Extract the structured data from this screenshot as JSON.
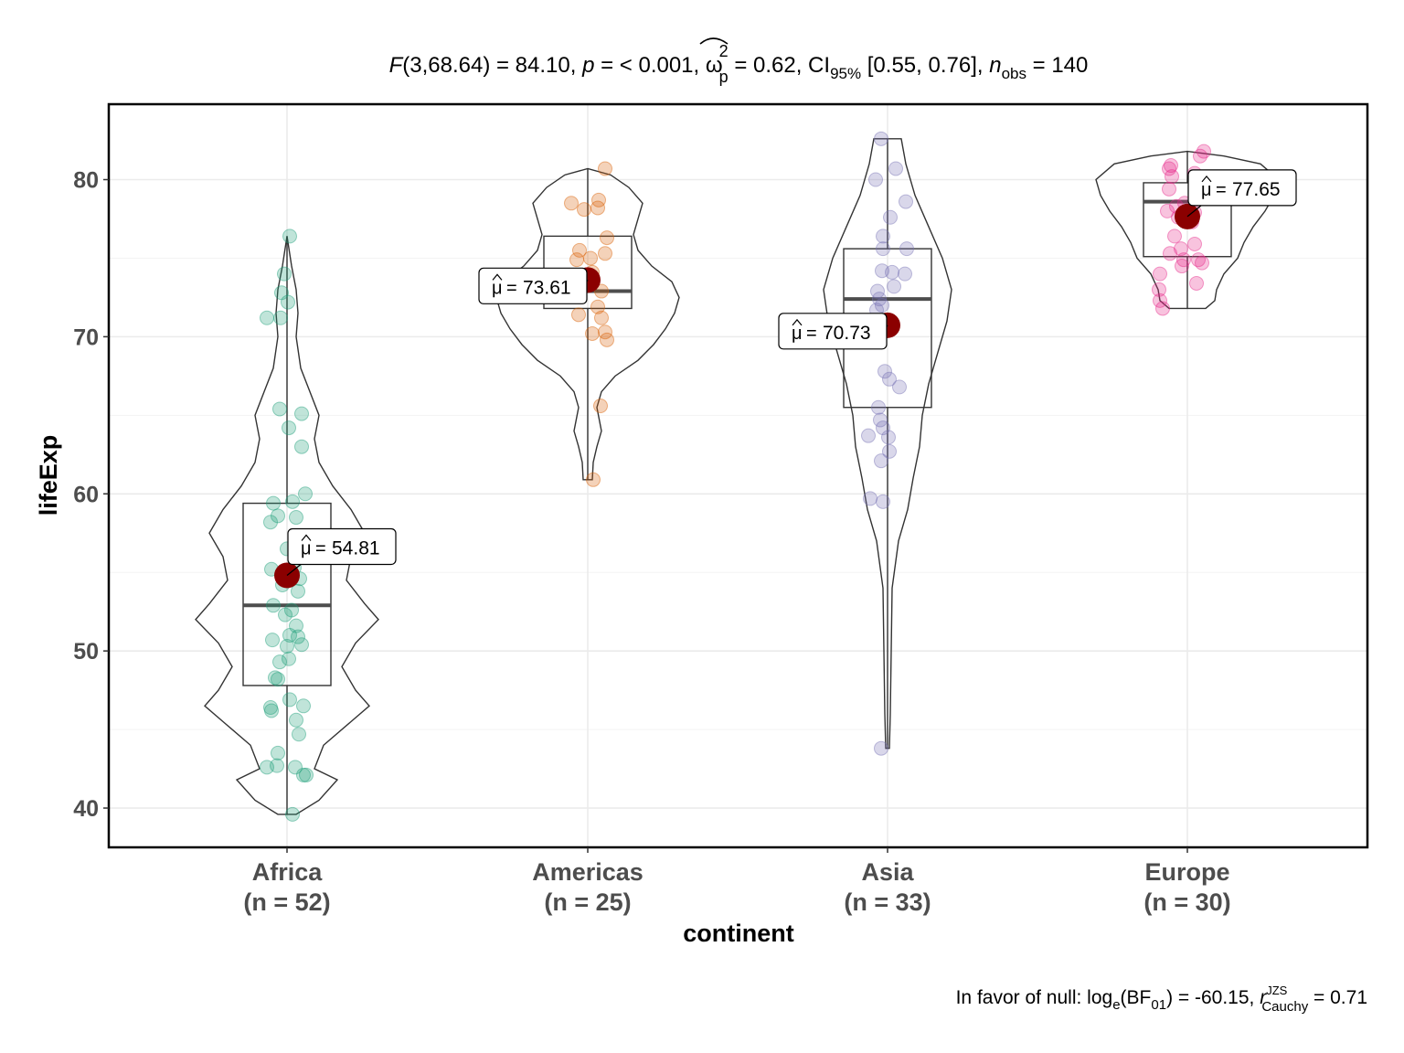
{
  "chart_data": {
    "type": "violin-box-scatter",
    "title_parts": {
      "f_label": "F",
      "f_args": "(3,68.64) = 84.10, ",
      "p_label": "p",
      "p_value": " = < 0.001, ",
      "omega_symbol": "ω",
      "omega_sup": "2",
      "omega_sub": "p",
      "omega_value": " = 0.62, CI",
      "ci_sub": "95%",
      "ci_value": " [0.55, 0.76], ",
      "n_label": "n",
      "n_sub": "obs",
      "n_value": " = 140"
    },
    "caption_parts": {
      "prefix": "In favor of null: log",
      "log_sub": "e",
      "bf_open": "(BF",
      "bf_sub": "01",
      "bf_close": ") = -60.15, ",
      "r_label": "r",
      "r_sup": "JZS",
      "r_sub": "Cauchy",
      "r_value": " = 0.71"
    },
    "xlabel": "continent",
    "ylabel": "lifeExp",
    "ylim": [
      37.5,
      84.8
    ],
    "yticks": [
      40,
      50,
      60,
      70,
      80
    ],
    "grid": true,
    "mean_label_prefix": "μ",
    "mean_label_eq": "= ",
    "mean_color": "#8b0000",
    "groups": [
      {
        "name": "Africa",
        "n_label": "(n = 52)",
        "color": "#1b9e77",
        "mean": 54.81,
        "mean_label": "54.81",
        "box": {
          "q1": 47.8,
          "median": 52.9,
          "q3": 59.4,
          "whisker_low": 39.6,
          "whisker_high": 76.4
        },
        "violin": [
          [
            39.6,
            0.1
          ],
          [
            40.5,
            0.35
          ],
          [
            41.8,
            0.55
          ],
          [
            42.5,
            0.3
          ],
          [
            44,
            0.4
          ],
          [
            45.5,
            0.7
          ],
          [
            46.5,
            0.9
          ],
          [
            47.5,
            0.75
          ],
          [
            49,
            0.6
          ],
          [
            50.5,
            0.75
          ],
          [
            52,
            1.0
          ],
          [
            53,
            0.85
          ],
          [
            54.5,
            0.65
          ],
          [
            56,
            0.7
          ],
          [
            57.5,
            0.85
          ],
          [
            59,
            0.7
          ],
          [
            60.5,
            0.5
          ],
          [
            62,
            0.35
          ],
          [
            63.5,
            0.3
          ],
          [
            65,
            0.35
          ],
          [
            66.5,
            0.25
          ],
          [
            68,
            0.15
          ],
          [
            70,
            0.1
          ],
          [
            71.5,
            0.12
          ],
          [
            73,
            0.1
          ],
          [
            74.5,
            0.05
          ],
          [
            76.4,
            0.0
          ]
        ],
        "points": [
          [
            3,
            76.4
          ],
          [
            -3,
            74.0
          ],
          [
            -6,
            72.8
          ],
          [
            1,
            72.2
          ],
          [
            -22,
            71.2
          ],
          [
            -7,
            71.2
          ],
          [
            -8,
            65.4
          ],
          [
            16,
            65.1
          ],
          [
            2,
            64.2
          ],
          [
            16,
            63.0
          ],
          [
            20,
            60.0
          ],
          [
            6,
            59.5
          ],
          [
            -15,
            59.4
          ],
          [
            10,
            58.5
          ],
          [
            -18,
            58.2
          ],
          [
            -10,
            58.6
          ],
          [
            0,
            56.5
          ],
          [
            8,
            55.3
          ],
          [
            -17,
            55.2
          ],
          [
            14,
            54.6
          ],
          [
            -5,
            54.2
          ],
          [
            12,
            53.8
          ],
          [
            -15,
            52.9
          ],
          [
            5,
            52.6
          ],
          [
            -2,
            52.3
          ],
          [
            10,
            51.6
          ],
          [
            3,
            51.0
          ],
          [
            12,
            50.9
          ],
          [
            -16,
            50.7
          ],
          [
            0,
            50.3
          ],
          [
            16,
            50.4
          ],
          [
            2,
            49.5
          ],
          [
            -8,
            49.3
          ],
          [
            -13,
            48.3
          ],
          [
            -10,
            48.2
          ],
          [
            3,
            46.9
          ],
          [
            18,
            46.5
          ],
          [
            -18,
            46.4
          ],
          [
            -17,
            46.2
          ],
          [
            10,
            45.6
          ],
          [
            13,
            44.7
          ],
          [
            -10,
            43.5
          ],
          [
            -22,
            42.6
          ],
          [
            -11,
            42.7
          ],
          [
            9,
            42.6
          ],
          [
            18,
            42.1
          ],
          [
            21,
            42.1
          ],
          [
            6,
            39.6
          ]
        ]
      },
      {
        "name": "Americas",
        "n_label": "(n = 25)",
        "color": "#d95f02",
        "mean": 73.61,
        "mean_label": "73.61",
        "box": {
          "q1": 71.8,
          "median": 72.9,
          "q3": 76.4,
          "whisker_low": 60.9,
          "whisker_high": 80.7
        },
        "violin": [
          [
            60.9,
            0.05
          ],
          [
            62,
            0.06
          ],
          [
            63,
            0.1
          ],
          [
            64,
            0.15
          ],
          [
            65.5,
            0.1
          ],
          [
            66.5,
            0.15
          ],
          [
            67.5,
            0.3
          ],
          [
            68.5,
            0.55
          ],
          [
            69.5,
            0.72
          ],
          [
            70.5,
            0.85
          ],
          [
            71.5,
            0.95
          ],
          [
            72.5,
            1.0
          ],
          [
            73.5,
            0.92
          ],
          [
            74.5,
            0.7
          ],
          [
            75.5,
            0.55
          ],
          [
            76.5,
            0.5
          ],
          [
            77.5,
            0.55
          ],
          [
            78.5,
            0.6
          ],
          [
            79.5,
            0.45
          ],
          [
            80.3,
            0.25
          ],
          [
            80.7,
            0.0
          ]
        ],
        "points": [
          [
            19,
            80.7
          ],
          [
            -18,
            78.5
          ],
          [
            12,
            78.7
          ],
          [
            11,
            78.2
          ],
          [
            -4,
            78.1
          ],
          [
            21,
            76.3
          ],
          [
            -9,
            75.5
          ],
          [
            19,
            75.3
          ],
          [
            3,
            75.0
          ],
          [
            -12,
            74.9
          ],
          [
            5,
            74.1
          ],
          [
            15,
            72.9
          ],
          [
            -13,
            72.6
          ],
          [
            11,
            71.9
          ],
          [
            -10,
            71.4
          ],
          [
            15,
            71.2
          ],
          [
            19,
            70.3
          ],
          [
            5,
            70.2
          ],
          [
            21,
            69.8
          ],
          [
            14,
            65.6
          ],
          [
            6,
            60.9
          ]
        ]
      },
      {
        "name": "Asia",
        "n_label": "(n = 33)",
        "color": "#7570b3",
        "mean": 70.73,
        "mean_label": "70.73",
        "box": {
          "q1": 65.5,
          "median": 72.4,
          "q3": 75.6,
          "whisker_low": 43.8,
          "whisker_high": 82.6
        },
        "violin": [
          [
            43.8,
            0.02
          ],
          [
            46,
            0.03
          ],
          [
            50,
            0.04
          ],
          [
            54,
            0.05
          ],
          [
            57,
            0.12
          ],
          [
            59,
            0.22
          ],
          [
            61,
            0.28
          ],
          [
            63,
            0.35
          ],
          [
            65,
            0.38
          ],
          [
            67,
            0.45
          ],
          [
            69,
            0.55
          ],
          [
            71,
            0.65
          ],
          [
            73,
            0.7
          ],
          [
            75,
            0.6
          ],
          [
            77,
            0.45
          ],
          [
            79,
            0.3
          ],
          [
            81,
            0.2
          ],
          [
            82.6,
            0.15
          ]
        ],
        "points": [
          [
            -7,
            82.6
          ],
          [
            9,
            80.7
          ],
          [
            -13,
            80.0
          ],
          [
            20,
            78.6
          ],
          [
            3,
            77.6
          ],
          [
            -5,
            76.4
          ],
          [
            21,
            75.6
          ],
          [
            -5,
            75.6
          ],
          [
            -6,
            74.2
          ],
          [
            5,
            74.1
          ],
          [
            19,
            74.0
          ],
          [
            7,
            73.2
          ],
          [
            -11,
            72.9
          ],
          [
            -9,
            72.4
          ],
          [
            -6,
            72.0
          ],
          [
            -12,
            71.7
          ],
          [
            -10,
            70.7
          ],
          [
            -9,
            70.3
          ],
          [
            -3,
            67.8
          ],
          [
            2,
            67.3
          ],
          [
            13,
            66.8
          ],
          [
            -10,
            65.5
          ],
          [
            -8,
            64.7
          ],
          [
            -5,
            64.2
          ],
          [
            -21,
            63.7
          ],
          [
            1,
            63.6
          ],
          [
            2,
            62.7
          ],
          [
            -7,
            62.1
          ],
          [
            -19,
            59.7
          ],
          [
            -5,
            59.5
          ],
          [
            -7,
            43.8
          ]
        ]
      },
      {
        "name": "Europe",
        "n_label": "(n = 30)",
        "color": "#e7298a",
        "mean": 77.65,
        "mean_label": "77.65",
        "box": {
          "q1": 75.1,
          "median": 78.6,
          "q3": 79.8,
          "whisker_low": 71.8,
          "whisker_high": 81.8
        },
        "violin": [
          [
            71.8,
            0.2
          ],
          [
            72.3,
            0.3
          ],
          [
            73,
            0.32
          ],
          [
            74,
            0.4
          ],
          [
            75,
            0.55
          ],
          [
            76,
            0.62
          ],
          [
            77,
            0.72
          ],
          [
            78,
            0.85
          ],
          [
            79,
            0.95
          ],
          [
            80,
            1.0
          ],
          [
            81,
            0.8
          ],
          [
            81.5,
            0.4
          ],
          [
            81.8,
            0.0
          ]
        ],
        "points": [
          [
            18,
            81.8
          ],
          [
            14,
            81.5
          ],
          [
            -18,
            80.9
          ],
          [
            -20,
            80.7
          ],
          [
            8,
            80.4
          ],
          [
            -17,
            80.2
          ],
          [
            -20,
            79.4
          ],
          [
            -3,
            78.5
          ],
          [
            -12,
            78.3
          ],
          [
            -22,
            78.0
          ],
          [
            8,
            77.9
          ],
          [
            -10,
            77.6
          ],
          [
            5,
            77.3
          ],
          [
            -14,
            76.4
          ],
          [
            8,
            75.9
          ],
          [
            -7,
            75.6
          ],
          [
            -19,
            75.3
          ],
          [
            -4,
            74.9
          ],
          [
            12,
            74.9
          ],
          [
            16,
            74.7
          ],
          [
            -6,
            74.5
          ],
          [
            -30,
            74.0
          ],
          [
            -31,
            73.0
          ],
          [
            -30,
            72.3
          ],
          [
            -27,
            71.8
          ],
          [
            10,
            73.4
          ]
        ]
      }
    ]
  }
}
